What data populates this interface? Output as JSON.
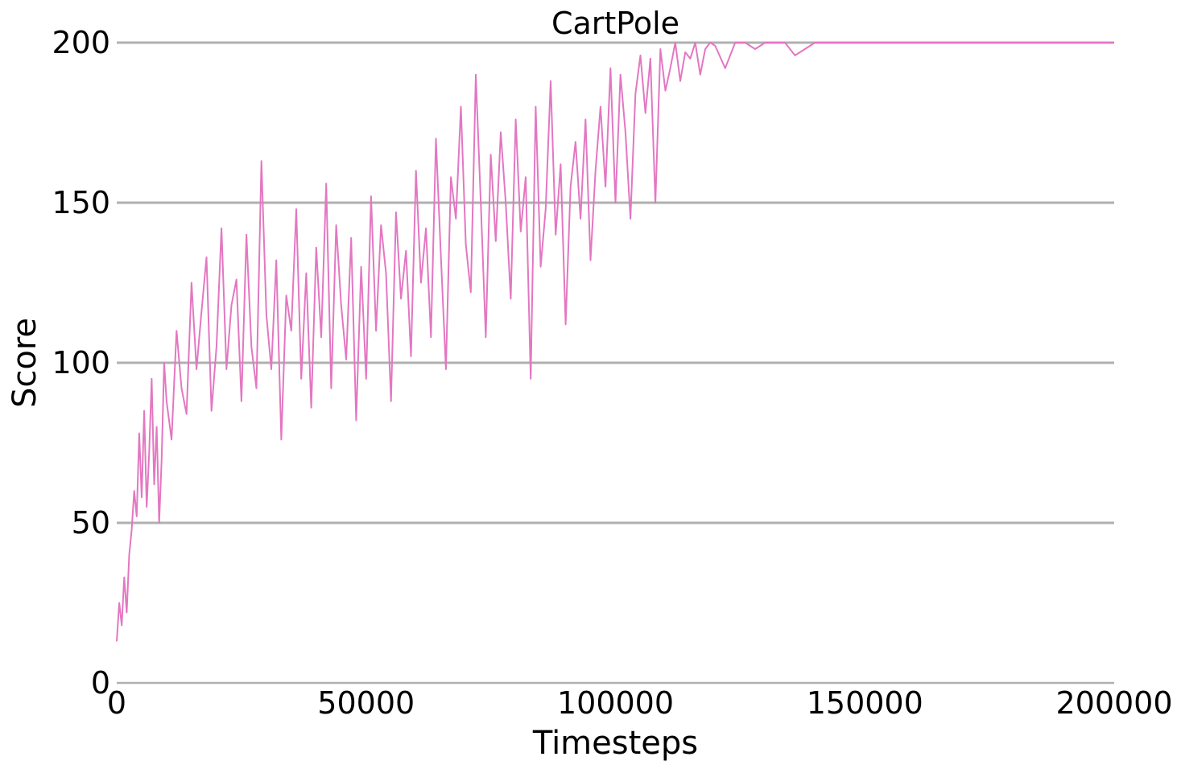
{
  "chart_data": {
    "type": "line",
    "title": "CartPole",
    "xlabel": "Timesteps",
    "ylabel": "Score",
    "xlim": [
      0,
      200000
    ],
    "ylim": [
      0,
      200
    ],
    "xticks": [
      0,
      50000,
      100000,
      150000,
      200000
    ],
    "xtick_labels": [
      "0",
      "50000",
      "100000",
      "150000",
      "200000"
    ],
    "yticks": [
      0,
      50,
      100,
      150,
      200
    ],
    "ytick_labels": [
      "0",
      "50",
      "100",
      "150",
      "200"
    ],
    "grid": "horizontal",
    "legend": "none",
    "colors": {
      "line": "#e377c2",
      "grid": "#b0b0b0",
      "axis": "#b0b0b0"
    },
    "series": [
      {
        "x": [
          0,
          500,
          1000,
          1500,
          2000,
          2500,
          3000,
          3500,
          4000,
          4500,
          5000,
          5500,
          6000,
          6500,
          7000,
          7500,
          8000,
          8500,
          9000,
          9500,
          10000,
          11000,
          12000,
          13000,
          14000,
          15000,
          16000,
          17000,
          18000,
          19000,
          20000,
          21000,
          22000,
          23000,
          24000,
          25000,
          26000,
          27000,
          28000,
          29000,
          30000,
          31000,
          32000,
          33000,
          34000,
          35000,
          36000,
          37000,
          38000,
          39000,
          40000,
          41000,
          42000,
          43000,
          44000,
          45000,
          46000,
          47000,
          48000,
          49000,
          50000,
          51000,
          52000,
          53000,
          54000,
          55000,
          56000,
          57000,
          58000,
          59000,
          60000,
          61000,
          62000,
          63000,
          64000,
          65000,
          66000,
          67000,
          68000,
          69000,
          70000,
          71000,
          72000,
          73000,
          74000,
          75000,
          76000,
          77000,
          78000,
          79000,
          80000,
          81000,
          82000,
          83000,
          84000,
          85000,
          86000,
          87000,
          88000,
          89000,
          90000,
          91000,
          92000,
          93000,
          94000,
          95000,
          96000,
          97000,
          98000,
          99000,
          100000,
          101000,
          102000,
          103000,
          104000,
          105000,
          106000,
          107000,
          108000,
          109000,
          110000,
          111000,
          112000,
          113000,
          114000,
          115000,
          116000,
          117000,
          118000,
          119000,
          120000,
          122000,
          124000,
          126000,
          128000,
          130000,
          132000,
          134000,
          136000,
          140000,
          150000,
          160000,
          170000,
          180000,
          190000,
          200000
        ],
        "y": [
          13,
          25,
          18,
          33,
          22,
          40,
          48,
          60,
          52,
          78,
          58,
          85,
          55,
          72,
          95,
          62,
          80,
          50,
          70,
          100,
          88,
          76,
          110,
          92,
          84,
          125,
          98,
          116,
          133,
          85,
          105,
          142,
          98,
          118,
          126,
          88,
          140,
          105,
          92,
          163,
          115,
          98,
          132,
          76,
          121,
          110,
          148,
          95,
          128,
          86,
          136,
          108,
          156,
          92,
          143,
          118,
          101,
          139,
          82,
          130,
          95,
          152,
          110,
          143,
          128,
          88,
          147,
          120,
          135,
          102,
          160,
          125,
          142,
          108,
          170,
          133,
          98,
          158,
          145,
          180,
          137,
          122,
          190,
          150,
          108,
          165,
          138,
          172,
          150,
          120,
          176,
          141,
          158,
          95,
          180,
          130,
          148,
          188,
          140,
          162,
          112,
          155,
          169,
          145,
          176,
          132,
          160,
          180,
          155,
          192,
          150,
          190,
          172,
          145,
          184,
          196,
          178,
          195,
          150,
          198,
          185,
          192,
          200,
          188,
          197,
          195,
          200,
          190,
          198,
          200,
          199,
          192,
          200,
          200,
          198,
          200,
          200,
          200,
          196,
          200,
          200,
          200,
          200,
          200,
          200,
          200
        ]
      }
    ]
  }
}
